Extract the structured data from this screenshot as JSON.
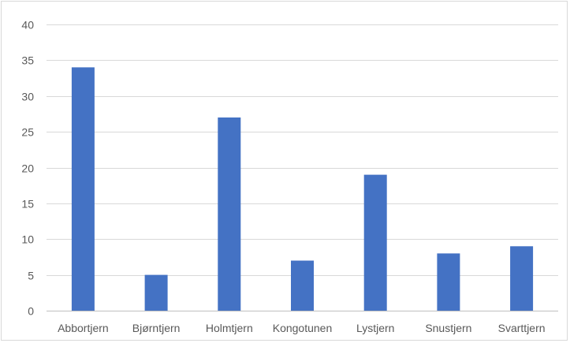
{
  "chart_data": {
    "type": "bar",
    "title": "",
    "xlabel": "",
    "ylabel": "",
    "categories": [
      "Abbortjern",
      "Bjørntjern",
      "Holmtjern",
      "Kongotunen",
      "Lystjern",
      "Snustjern",
      "Svarttjern"
    ],
    "values": [
      34,
      5,
      27,
      7,
      19,
      8,
      9
    ],
    "ylim": [
      0,
      40
    ],
    "yticks": [
      0,
      5,
      10,
      15,
      20,
      25,
      30,
      35,
      40
    ],
    "grid": true,
    "legend": "none",
    "bar_color": "#4472c4"
  }
}
